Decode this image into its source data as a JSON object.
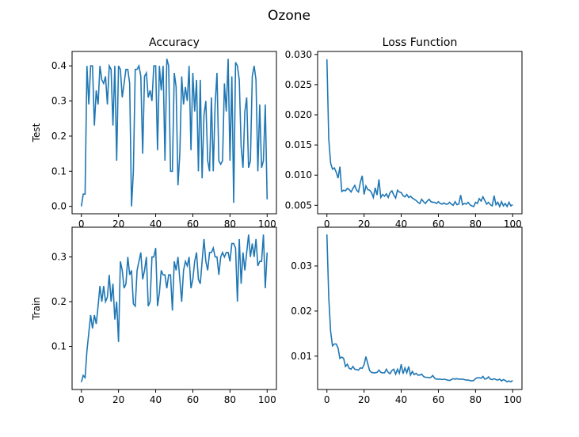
{
  "title": "Ozone",
  "chart_data": [
    {
      "type": "line",
      "title": "Accuracy",
      "ylabel": "Test",
      "color": "#1f77b4",
      "x": [
        0,
        1,
        2,
        3,
        4,
        5,
        6,
        7,
        8,
        9,
        10,
        11,
        12,
        13,
        14,
        15,
        16,
        17,
        18,
        19,
        20,
        21,
        22,
        23,
        24,
        25,
        26,
        27,
        28,
        29,
        30,
        31,
        32,
        33,
        34,
        35,
        36,
        37,
        38,
        39,
        40,
        41,
        42,
        43,
        44,
        45,
        46,
        47,
        48,
        49,
        50,
        51,
        52,
        53,
        54,
        55,
        56,
        57,
        58,
        59,
        60,
        61,
        62,
        63,
        64,
        65,
        66,
        67,
        68,
        69,
        70,
        71,
        72,
        73,
        74,
        75,
        76,
        77,
        78,
        79,
        80,
        81,
        82,
        83,
        84,
        85,
        86,
        87,
        88,
        89,
        90,
        91,
        92,
        93,
        94,
        95,
        96,
        97,
        98,
        99,
        100
      ],
      "values": [
        0,
        0.035,
        0.035,
        0.4,
        0.29,
        0.4,
        0.4,
        0.23,
        0.33,
        0.29,
        0.4,
        0.36,
        0.35,
        0.37,
        0.29,
        0.4,
        0.39,
        0.23,
        0.4,
        0.13,
        0.4,
        0.39,
        0.31,
        0.35,
        0.39,
        0.39,
        0.35,
        0.0,
        0.1,
        0.39,
        0.39,
        0.4,
        0.37,
        0.15,
        0.37,
        0.38,
        0.31,
        0.33,
        0.3,
        0.4,
        0.4,
        0.16,
        0.4,
        0.33,
        0.4,
        0.13,
        0.42,
        0.4,
        0.1,
        0.1,
        0.38,
        0.34,
        0.06,
        0.15,
        0.37,
        0.29,
        0.34,
        0.3,
        0.4,
        0.16,
        0.38,
        0.27,
        0.36,
        0.1,
        0.36,
        0.08,
        0.26,
        0.3,
        0.13,
        0.1,
        0.31,
        0.1,
        0.29,
        0.38,
        0.13,
        0.12,
        0.13,
        0.35,
        0.27,
        0.42,
        0.13,
        0.37,
        0.01,
        0.41,
        0.4,
        0.36,
        0.17,
        0.11,
        0.27,
        0.31,
        0.11,
        0.13,
        0.37,
        0.4,
        0.36,
        0.1,
        0.29,
        0.11,
        0.13,
        0.29,
        0.02
      ],
      "xlim": [
        -5,
        105
      ],
      "xticks": [
        0,
        20,
        40,
        60,
        80,
        100
      ],
      "ylim": [
        -0.021,
        0.441
      ],
      "yticks": [
        {
          "value": 0,
          "label": "0.0"
        },
        0.1,
        0.2,
        0.3,
        0.4
      ]
    },
    {
      "type": "line",
      "title": "Loss Function",
      "color": "#1f77b4",
      "x": [
        0,
        1,
        2,
        3,
        4,
        5,
        6,
        7,
        8,
        9,
        10,
        11,
        12,
        13,
        14,
        15,
        16,
        17,
        18,
        19,
        20,
        21,
        22,
        23,
        24,
        25,
        26,
        27,
        28,
        29,
        30,
        31,
        32,
        33,
        34,
        35,
        36,
        37,
        38,
        39,
        40,
        41,
        42,
        43,
        44,
        45,
        46,
        47,
        48,
        49,
        50,
        51,
        52,
        53,
        54,
        55,
        56,
        57,
        58,
        59,
        60,
        61,
        62,
        63,
        64,
        65,
        66,
        67,
        68,
        69,
        70,
        71,
        72,
        73,
        74,
        75,
        76,
        77,
        78,
        79,
        80,
        81,
        82,
        83,
        84,
        85,
        86,
        87,
        88,
        89,
        90,
        91,
        92,
        93,
        94,
        95,
        96,
        97,
        98,
        99,
        100
      ],
      "values": [
        0.0292,
        0.016,
        0.012,
        0.011,
        0.0112,
        0.0105,
        0.0095,
        0.0114,
        0.0073,
        0.0075,
        0.0074,
        0.0078,
        0.0076,
        0.0072,
        0.0078,
        0.0083,
        0.0075,
        0.0072,
        0.0088,
        0.0099,
        0.0068,
        0.0082,
        0.0076,
        0.0075,
        0.0071,
        0.0063,
        0.0079,
        0.0067,
        0.0093,
        0.0063,
        0.0068,
        0.0065,
        0.0069,
        0.0063,
        0.0071,
        0.0074,
        0.0067,
        0.0062,
        0.0075,
        0.0072,
        0.0071,
        0.0066,
        0.0064,
        0.0068,
        0.0063,
        0.0065,
        0.0062,
        0.006,
        0.0058,
        0.0055,
        0.0053,
        0.006,
        0.0056,
        0.0053,
        0.0057,
        0.006,
        0.0056,
        0.0055,
        0.0055,
        0.0053,
        0.0056,
        0.0053,
        0.0052,
        0.0054,
        0.0052,
        0.0052,
        0.0055,
        0.0052,
        0.005,
        0.0056,
        0.0051,
        0.0052,
        0.0067,
        0.0051,
        0.0053,
        0.0052,
        0.0055,
        0.0051,
        0.0049,
        0.0048,
        0.0055,
        0.0053,
        0.0061,
        0.0057,
        0.0064,
        0.0058,
        0.0052,
        0.0055,
        0.0051,
        0.0049,
        0.0066,
        0.0051,
        0.0055,
        0.0048,
        0.0056,
        0.0049,
        0.0053,
        0.0048,
        0.0055,
        0.0049,
        0.0051
      ],
      "xlim": [
        -5,
        105
      ],
      "xticks": [
        0,
        20,
        40,
        60,
        80,
        100
      ],
      "ylim": [
        0.0036,
        0.0305
      ],
      "yticks": [
        0.005,
        {
          "value": 0.01,
          "label": "0.010"
        },
        0.015,
        {
          "value": 0.02,
          "label": "0.020"
        },
        0.025,
        {
          "value": 0.03,
          "label": "0.030"
        }
      ]
    },
    {
      "type": "line",
      "ylabel": "Train",
      "color": "#1f77b4",
      "x": [
        0,
        1,
        2,
        3,
        4,
        5,
        6,
        7,
        8,
        9,
        10,
        11,
        12,
        13,
        14,
        15,
        16,
        17,
        18,
        19,
        20,
        21,
        22,
        23,
        24,
        25,
        26,
        27,
        28,
        29,
        30,
        31,
        32,
        33,
        34,
        35,
        36,
        37,
        38,
        39,
        40,
        41,
        42,
        43,
        44,
        45,
        46,
        47,
        48,
        49,
        50,
        51,
        52,
        53,
        54,
        55,
        56,
        57,
        58,
        59,
        60,
        61,
        62,
        63,
        64,
        65,
        66,
        67,
        68,
        69,
        70,
        71,
        72,
        73,
        74,
        75,
        76,
        77,
        78,
        79,
        80,
        81,
        82,
        83,
        84,
        85,
        86,
        87,
        88,
        89,
        90,
        91,
        92,
        93,
        94,
        95,
        96,
        97,
        98,
        99,
        100
      ],
      "values": [
        0.02,
        0.035,
        0.03,
        0.09,
        0.13,
        0.17,
        0.14,
        0.17,
        0.15,
        0.19,
        0.235,
        0.2,
        0.235,
        0.2,
        0.21,
        0.26,
        0.2,
        0.24,
        0.16,
        0.2,
        0.11,
        0.29,
        0.27,
        0.23,
        0.24,
        0.3,
        0.26,
        0.27,
        0.195,
        0.19,
        0.27,
        0.29,
        0.31,
        0.25,
        0.27,
        0.3,
        0.19,
        0.2,
        0.3,
        0.3,
        0.32,
        0.19,
        0.22,
        0.27,
        0.26,
        0.26,
        0.23,
        0.26,
        0.26,
        0.18,
        0.29,
        0.27,
        0.3,
        0.25,
        0.2,
        0.27,
        0.29,
        0.28,
        0.3,
        0.23,
        0.25,
        0.29,
        0.31,
        0.25,
        0.24,
        0.29,
        0.34,
        0.29,
        0.27,
        0.31,
        0.31,
        0.32,
        0.3,
        0.3,
        0.26,
        0.3,
        0.31,
        0.3,
        0.31,
        0.31,
        0.29,
        0.33,
        0.33,
        0.32,
        0.2,
        0.34,
        0.24,
        0.31,
        0.27,
        0.31,
        0.35,
        0.3,
        0.33,
        0.3,
        0.34,
        0.28,
        0.29,
        0.29,
        0.35,
        0.23,
        0.31
      ],
      "xlim": [
        -5,
        105
      ],
      "xticks": [
        0,
        20,
        40,
        60,
        80,
        100
      ],
      "ylim": [
        0.0035,
        0.3665
      ],
      "yticks": [
        0.1,
        0.2,
        0.3
      ]
    },
    {
      "type": "line",
      "color": "#1f77b4",
      "x": [
        0,
        1,
        2,
        3,
        4,
        5,
        6,
        7,
        8,
        9,
        10,
        11,
        12,
        13,
        14,
        15,
        16,
        17,
        18,
        19,
        20,
        21,
        22,
        23,
        24,
        25,
        26,
        27,
        28,
        29,
        30,
        31,
        32,
        33,
        34,
        35,
        36,
        37,
        38,
        39,
        40,
        41,
        42,
        43,
        44,
        45,
        46,
        47,
        48,
        49,
        50,
        51,
        52,
        53,
        54,
        55,
        56,
        57,
        58,
        59,
        60,
        61,
        62,
        63,
        64,
        65,
        66,
        67,
        68,
        69,
        70,
        71,
        72,
        73,
        74,
        75,
        76,
        77,
        78,
        79,
        80,
        81,
        82,
        83,
        84,
        85,
        86,
        87,
        88,
        89,
        90,
        91,
        92,
        93,
        94,
        95,
        96,
        97,
        98,
        99,
        100
      ],
      "values": [
        0.037,
        0.023,
        0.0155,
        0.0123,
        0.0127,
        0.0127,
        0.0118,
        0.0095,
        0.0098,
        0.0095,
        0.0077,
        0.0082,
        0.0073,
        0.0071,
        0.0077,
        0.0071,
        0.007,
        0.0069,
        0.0074,
        0.0073,
        0.0081,
        0.0099,
        0.0083,
        0.0068,
        0.0064,
        0.0063,
        0.0063,
        0.0064,
        0.0069,
        0.0064,
        0.0063,
        0.0063,
        0.0071,
        0.0064,
        0.0061,
        0.0068,
        0.0071,
        0.006,
        0.0071,
        0.0062,
        0.0082,
        0.0061,
        0.0074,
        0.0063,
        0.0077,
        0.0058,
        0.0066,
        0.0059,
        0.0062,
        0.0058,
        0.0058,
        0.006,
        0.0055,
        0.0053,
        0.0053,
        0.0052,
        0.0053,
        0.0057,
        0.0051,
        0.0049,
        0.0049,
        0.0049,
        0.0048,
        0.0049,
        0.0048,
        0.0047,
        0.0046,
        0.0048,
        0.005,
        0.0049,
        0.005,
        0.0049,
        0.0049,
        0.0049,
        0.0048,
        0.0047,
        0.0047,
        0.0046,
        0.0045,
        0.0046,
        0.005,
        0.0052,
        0.0052,
        0.0051,
        0.0055,
        0.0049,
        0.005,
        0.0054,
        0.0049,
        0.0048,
        0.005,
        0.0048,
        0.0047,
        0.0049,
        0.0045,
        0.0048,
        0.0046,
        0.0043,
        0.0045,
        0.0043,
        0.0046
      ],
      "xlim": [
        -5,
        105
      ],
      "xticks": [
        0,
        20,
        40,
        60,
        80,
        100
      ],
      "ylim": [
        0.0026,
        0.0386
      ],
      "yticks": [
        0.01,
        0.02,
        0.03
      ]
    }
  ]
}
